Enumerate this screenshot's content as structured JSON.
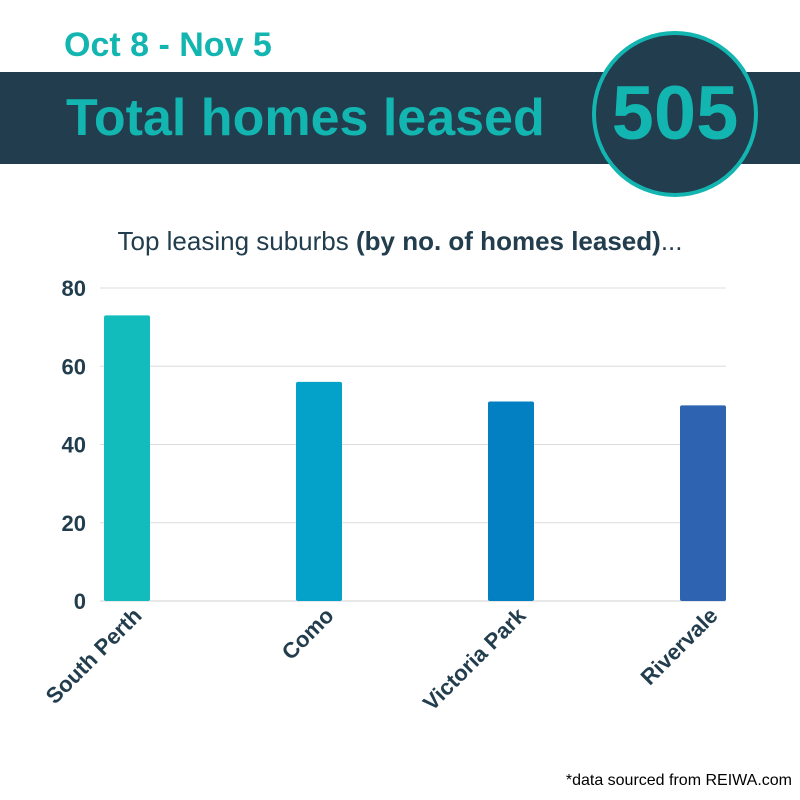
{
  "header": {
    "date_range": "Oct 8 - Nov 5",
    "headline": "Total homes leased",
    "total": "505"
  },
  "subtitle": {
    "prefix": "Top leasing suburbs ",
    "bold": "(by no. of homes leased)",
    "suffix": "..."
  },
  "chart_data": {
    "type": "bar",
    "categories": [
      "South Perth",
      "Como",
      "Victoria Park",
      "Rivervale"
    ],
    "values": [
      73,
      56,
      51,
      50
    ],
    "colors": [
      "#12bcbc",
      "#04a2c8",
      "#0280c2",
      "#2d63b0"
    ],
    "yticks": [
      0,
      20,
      40,
      60,
      80
    ],
    "ylim": [
      0,
      80
    ],
    "grid": true
  },
  "footer": {
    "source": "*data sourced from REIWA.com"
  },
  "colors": {
    "accent": "#13b5b1",
    "navy": "#223d4d"
  }
}
